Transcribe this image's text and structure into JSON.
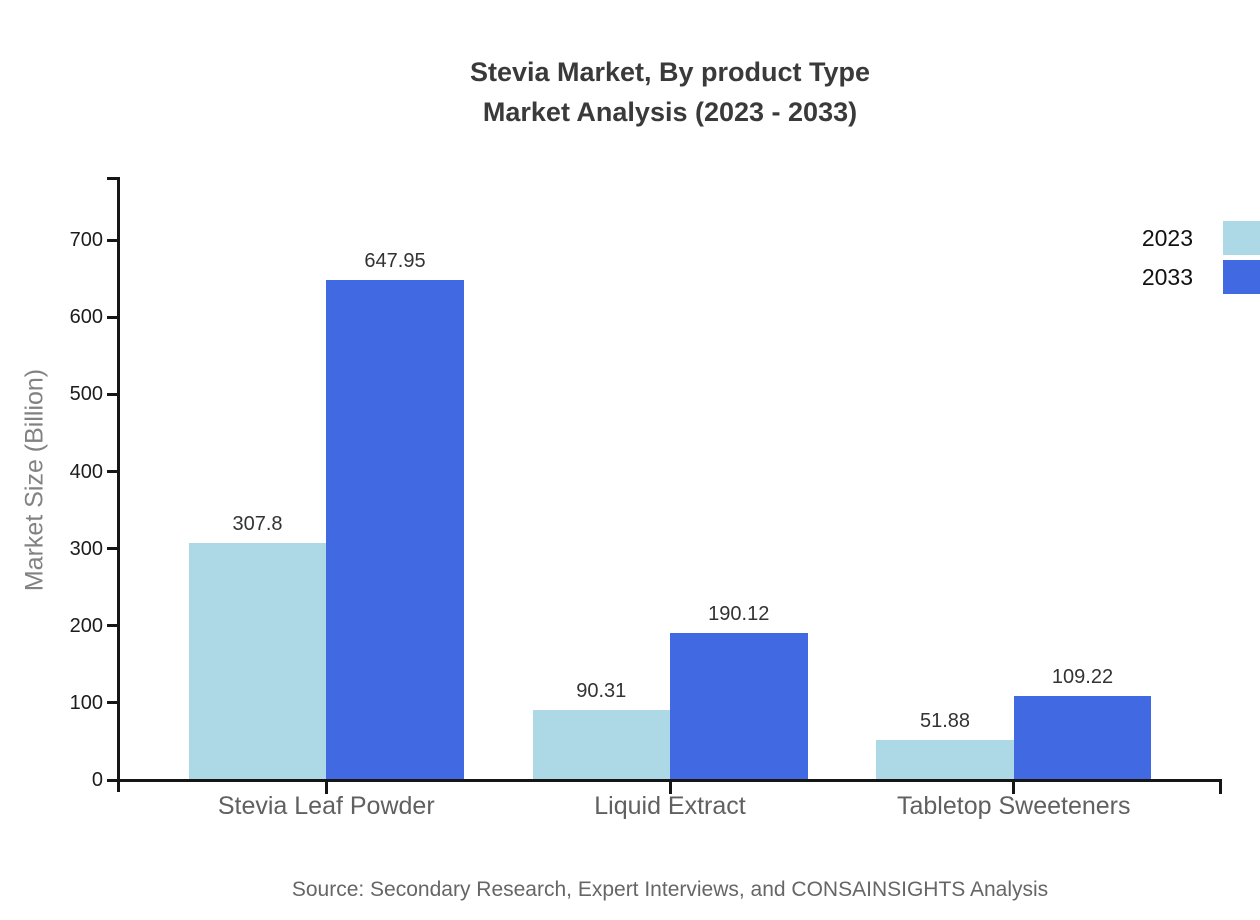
{
  "page": {
    "title_line1": "Stevia Market, By product Type",
    "title_line2": "Market Analysis (2023 - 2033)",
    "source": "Source: Secondary Research, Expert Interviews, and CONSAINSIGHTS Analysis"
  },
  "chart_data": {
    "type": "bar",
    "title": "Stevia Market, By product Type Market Analysis (2023 - 2033)",
    "categories": [
      "Stevia Leaf Powder",
      "Liquid Extract",
      "Tabletop Sweeteners"
    ],
    "series": [
      {
        "name": "2023",
        "color": "#ADD8E6",
        "values": [
          307.8,
          90.31,
          51.88
        ]
      },
      {
        "name": "2033",
        "color": "#4169E1",
        "values": [
          647.95,
          190.12,
          109.22
        ]
      }
    ],
    "value_labels": [
      "307.8",
      "647.95",
      "90.31",
      "190.12",
      "51.88",
      "109.22"
    ],
    "xlabel": "",
    "ylabel": "Market Size (Billion)",
    "ylim": [
      0,
      778
    ],
    "yticks": [
      0,
      100,
      200,
      300,
      400,
      500,
      600,
      700
    ],
    "grid": false,
    "legend_position": "upper-right-outside",
    "colors": {
      "axis": "#161616",
      "title_text": "#3a3a3a",
      "tick_label_text": "#1c1c1c",
      "category_label_text": "#606060",
      "y_axis_label_text": "#828282",
      "source_text": "#666666",
      "background": "#ffffff"
    }
  }
}
